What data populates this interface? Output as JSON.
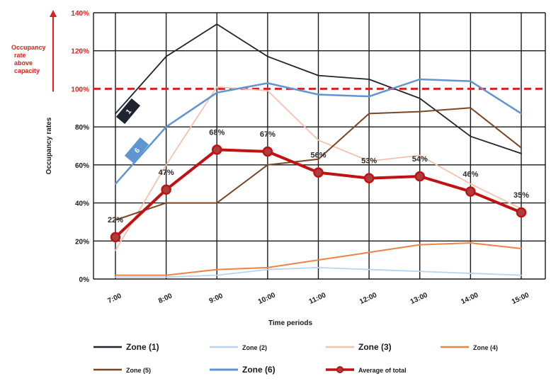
{
  "chart_data": {
    "type": "line",
    "xlabel": "Time periods",
    "ylabel": "Occupancy rates",
    "x": [
      "7:00",
      "8:00",
      "9:00",
      "10:00",
      "11:00",
      "12:00",
      "13:00",
      "14:00",
      "15:00"
    ],
    "y_ticks": [
      "0%",
      "20%",
      "40%",
      "60%",
      "80%",
      "100%",
      "120%",
      "140%"
    ],
    "ylim": [
      0,
      140
    ],
    "grid": true,
    "legend_position": "bottom",
    "capacity_annotation": {
      "value": 100,
      "label_lines": [
        "Occupancy",
        "rate",
        "above",
        "capacity"
      ],
      "color": "#e0201e"
    },
    "series": [
      {
        "name": "Zone (1)",
        "color": "#1f2430",
        "width": 1.8,
        "values": [
          87,
          117,
          134,
          117,
          107,
          105,
          95,
          75,
          66
        ],
        "tag": "1"
      },
      {
        "name": "Zone (2)",
        "color": "#b9d4ee",
        "width": 1.8,
        "values": [
          1,
          1,
          2,
          5,
          6,
          5,
          4,
          3,
          2
        ]
      },
      {
        "name": "Zone (3)",
        "color": "#f7c2ad",
        "width": 1.8,
        "values": [
          15,
          60,
          101,
          99,
          73,
          62,
          65,
          50,
          37
        ]
      },
      {
        "name": "Zone (4)",
        "color": "#ef8345",
        "width": 2,
        "values": [
          2,
          2,
          5,
          6,
          10,
          14,
          18,
          19,
          16
        ]
      },
      {
        "name": "Zone (5)",
        "color": "#7a4726",
        "width": 2,
        "values": [
          31,
          40,
          40,
          60,
          63,
          87,
          88,
          90,
          69
        ]
      },
      {
        "name": "Zone (6)",
        "color": "#5f95d0",
        "width": 2.5,
        "values": [
          50,
          80,
          98,
          103,
          97,
          96,
          105,
          104,
          87
        ],
        "tag": "6"
      },
      {
        "name": "Average of total",
        "color": "#c01212",
        "width": 4,
        "marker": "circle",
        "values": [
          22,
          47,
          68,
          67,
          56,
          53,
          54,
          46,
          35
        ],
        "labels": [
          "22%",
          "47%",
          "68%",
          "67%",
          "56%",
          "53%",
          "54%",
          "46%",
          "35%"
        ]
      }
    ]
  }
}
